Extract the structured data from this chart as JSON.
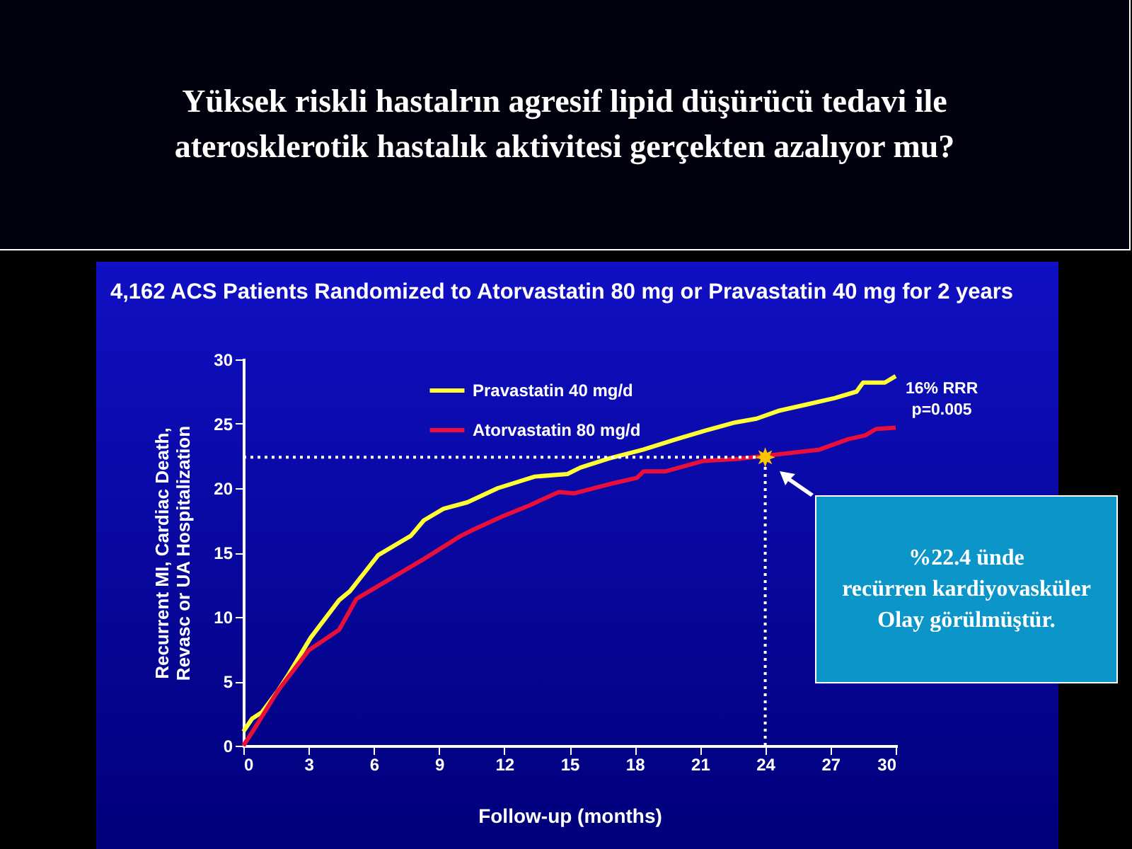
{
  "chart_data": {
    "type": "line",
    "title": "Yüksek riskli hastalrın  agresif lipid düşürücü tedavi ile\naterosklerotik hastalık aktivitesi  gerçekten azalıyor mu?",
    "subtitle": "4,162 ACS Patients Randomized to Atorvastatin 80 mg or Pravastatin 40 mg for 2 years",
    "xlabel": "Follow-up (months)",
    "ylabel": "Recurrent MI, Cardiac Death,\nRevasc or UA Hospitalization",
    "xlim": [
      0,
      30
    ],
    "ylim": [
      0,
      30
    ],
    "xticks": [
      0,
      3,
      6,
      9,
      12,
      15,
      18,
      21,
      24,
      27,
      30
    ],
    "yticks": [
      0,
      5,
      10,
      15,
      20,
      25,
      30
    ],
    "grid": false,
    "legend": "top",
    "marker": "none",
    "line_style": "solid",
    "series": [
      {
        "name": "Pravastatin 40 mg/d",
        "color": "#ffff33",
        "x": [
          0,
          0.4,
          0.85,
          1.6,
          2.1,
          3.1,
          4.4,
          4.9,
          6.2,
          7.7,
          8.3,
          9.2,
          10.3,
          11.7,
          13.4,
          14.9,
          15.5,
          16.8,
          18.4,
          19.9,
          21.3,
          22.6,
          23.6,
          24.6,
          25.9,
          27.2,
          28.2,
          28.5,
          29.5,
          30
        ],
        "values": [
          1.1,
          2.1,
          2.6,
          4.3,
          5.6,
          8.4,
          11.3,
          12,
          14.8,
          16.3,
          17.5,
          18.4,
          18.9,
          20,
          20.9,
          21.1,
          21.6,
          22.3,
          23,
          23.8,
          24.5,
          25.1,
          25.4,
          26,
          26.5,
          27,
          27.5,
          28.2,
          28.2,
          28.7
        ]
      },
      {
        "name": "Atorvastatin 80 mg/d",
        "color": "#e8103a",
        "x": [
          0,
          0.5,
          1.6,
          3,
          4.4,
          5.2,
          6.4,
          8.3,
          10,
          10.6,
          11.9,
          13.2,
          14.5,
          15.2,
          16.8,
          18.1,
          18.4,
          19.4,
          21.1,
          22.9,
          26.5,
          27.8,
          28.6,
          29.1,
          30
        ],
        "values": [
          0,
          1.3,
          4.3,
          7.4,
          9,
          11.4,
          12.6,
          14.5,
          16.3,
          16.8,
          17.8,
          18.7,
          19.7,
          19.6,
          20.3,
          20.8,
          21.3,
          21.3,
          22.1,
          22.3,
          23,
          23.8,
          24.1,
          24.6,
          24.7
        ]
      },
      {
        "type": "scatter",
        "color": "#ffc400",
        "marker": "star",
        "x": [
          24
        ],
        "values": [
          22.4
        ]
      }
    ],
    "ref_lines": [
      {
        "axis": "y",
        "value": 22.4,
        "line_style": "dotted",
        "color": "#ffffff"
      },
      {
        "axis": "x",
        "value": 24,
        "line_style": "dotted",
        "color": "#ffffff"
      }
    ],
    "annotations": [
      "16% RRR\np=0.005",
      "%22.4 ünde\nrecürren kardiyovasküler\nOlay görülmüştür."
    ]
  }
}
